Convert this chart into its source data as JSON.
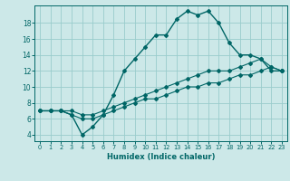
{
  "xlabel": "Humidex (Indice chaleur)",
  "bg_color": "#cce8e8",
  "grid_color": "#99cccc",
  "line_color": "#006666",
  "xlim": [
    -0.5,
    23.5
  ],
  "ylim": [
    3.2,
    20.2
  ],
  "xticks": [
    0,
    1,
    2,
    3,
    4,
    5,
    6,
    7,
    8,
    9,
    10,
    11,
    12,
    13,
    14,
    15,
    16,
    17,
    18,
    19,
    20,
    21,
    22,
    23
  ],
  "yticks": [
    4,
    6,
    8,
    10,
    12,
    14,
    16,
    18
  ],
  "hours": [
    0,
    1,
    2,
    3,
    4,
    5,
    6,
    7,
    8,
    9,
    10,
    11,
    12,
    13,
    14,
    15,
    16,
    17,
    18,
    19,
    20,
    21,
    22,
    23
  ],
  "line_main": [
    7.0,
    7.0,
    7.0,
    6.5,
    4.0,
    5.0,
    6.5,
    9.0,
    12.0,
    13.5,
    15.0,
    16.5,
    16.5,
    18.5,
    19.5,
    19.0,
    19.5,
    18.0,
    15.5,
    14.0,
    14.0,
    13.5,
    12.0,
    12.0
  ],
  "line_high": [
    7.0,
    7.0,
    7.0,
    7.0,
    6.5,
    6.5,
    7.0,
    7.5,
    8.0,
    8.5,
    9.0,
    9.5,
    10.0,
    10.5,
    11.0,
    11.5,
    12.0,
    12.0,
    12.0,
    12.5,
    13.0,
    13.5,
    12.5,
    12.0
  ],
  "line_low": [
    7.0,
    7.0,
    7.0,
    6.5,
    6.0,
    6.0,
    6.5,
    7.0,
    7.5,
    8.0,
    8.5,
    8.5,
    9.0,
    9.5,
    10.0,
    10.0,
    10.5,
    10.5,
    11.0,
    11.5,
    11.5,
    12.0,
    12.5,
    12.0
  ]
}
